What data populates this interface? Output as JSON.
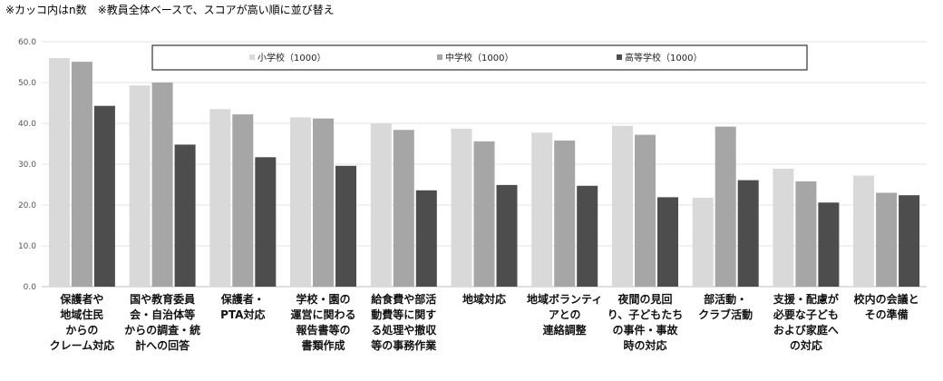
{
  "note": "※カッコ内はn数　※教員全体ベースで、スコアが高い順に並び替え",
  "chart_data": {
    "type": "bar",
    "ylim": [
      0,
      60
    ],
    "yticks": [
      "0.0",
      "10.0",
      "20.0",
      "30.0",
      "40.0",
      "50.0",
      "60.0"
    ],
    "grid": true,
    "legend_position": "top",
    "categories": [
      [
        "保護者や",
        "地域住民",
        "からの",
        "クレーム対応"
      ],
      [
        "国や教育委員",
        "会・自治体等",
        "からの調査・統",
        "計への回答"
      ],
      [
        "保護者・",
        "PTA対応"
      ],
      [
        "学校・園の",
        "運営に関わる",
        "報告書等の",
        "書類作成"
      ],
      [
        "給食費や部活",
        "動費等に関す",
        "る処理や撤収",
        "等の事務作業"
      ],
      [
        "地域対応"
      ],
      [
        "地域ボランティ",
        "アとの",
        "連絡調整"
      ],
      [
        "夜間の見回",
        "り、子どもたち",
        "の事件・事故",
        "時の対応"
      ],
      [
        "部活動・",
        "クラブ活動"
      ],
      [
        "支援・配慮が",
        "必要な子ども",
        "および家庭へ",
        "の対応"
      ],
      [
        "校内の会議と",
        "その準備"
      ]
    ],
    "series": [
      {
        "name": "小学校（1000）",
        "color": "#d9d9d9",
        "values": [
          56.0,
          49.3,
          43.5,
          41.5,
          40.0,
          38.7,
          37.7,
          39.4,
          21.8,
          28.9,
          27.2
        ]
      },
      {
        "name": "中学校（1000）",
        "color": "#a6a6a6",
        "values": [
          55.1,
          50.0,
          42.2,
          41.2,
          38.4,
          35.6,
          35.8,
          37.2,
          39.2,
          25.8,
          23.0
        ]
      },
      {
        "name": "高等学校（1000）",
        "color": "#4d4d4d",
        "values": [
          44.3,
          34.8,
          31.7,
          29.6,
          23.6,
          24.9,
          24.7,
          21.9,
          26.1,
          20.6,
          22.4
        ]
      }
    ]
  }
}
